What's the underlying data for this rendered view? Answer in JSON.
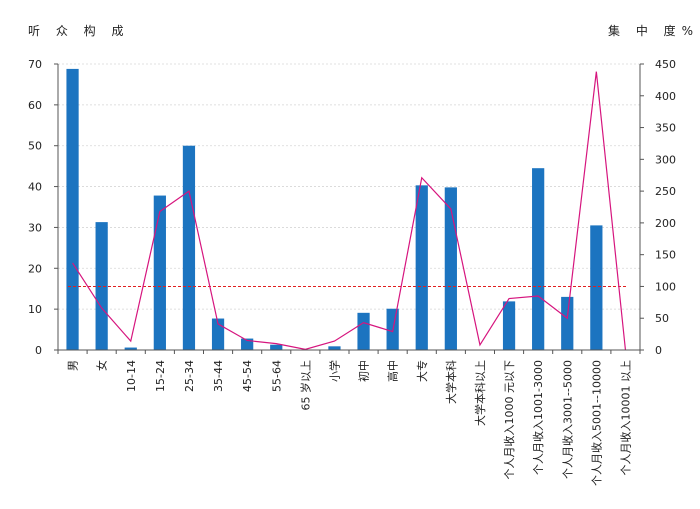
{
  "chart_data": {
    "type": "bar",
    "title_left": "听 众 构 成",
    "title_right": "集 中 度%",
    "categories": [
      "男",
      "女",
      "10-14",
      "15-24",
      "25-34",
      "35-44",
      "45-54",
      "55-64",
      "65 岁以上",
      "小学",
      "初中",
      "高中",
      "大专",
      "大学本科",
      "大学本科以上",
      "个人月收入1000 元以下",
      "个人月收入1001-3000",
      "个人月收入3001--5000",
      "个人月收入5001--10000",
      "个人月收入10001 以上"
    ],
    "series": [
      {
        "axis": "left",
        "type": "bar",
        "color": "#1c74c0",
        "values": [
          68.8,
          31.3,
          0.6,
          37.8,
          50.0,
          7.7,
          2.8,
          1.3,
          0.1,
          0.9,
          9.1,
          10.1,
          40.3,
          39.8,
          0.1,
          11.9,
          44.5,
          13.0,
          30.5,
          0.0
        ]
      },
      {
        "axis": "right",
        "type": "line",
        "color": "#d6157e",
        "values": [
          137,
          66,
          14,
          218,
          250,
          41,
          15,
          10,
          1,
          14,
          43,
          29,
          271,
          222,
          8,
          81,
          85,
          50,
          438,
          0
        ]
      }
    ],
    "reference_line": {
      "axis": "right",
      "value": 100,
      "color": "#e02020"
    },
    "left_axis": {
      "ylim": [
        0,
        70
      ],
      "ticks": [
        "0",
        "10",
        "20",
        "30",
        "40",
        "50",
        "60",
        "70"
      ]
    },
    "right_axis": {
      "ylim": [
        0,
        450
      ],
      "ticks": [
        "0",
        "50",
        "100",
        "150",
        "200",
        "250",
        "300",
        "350",
        "400",
        "450"
      ]
    },
    "grid": true
  }
}
